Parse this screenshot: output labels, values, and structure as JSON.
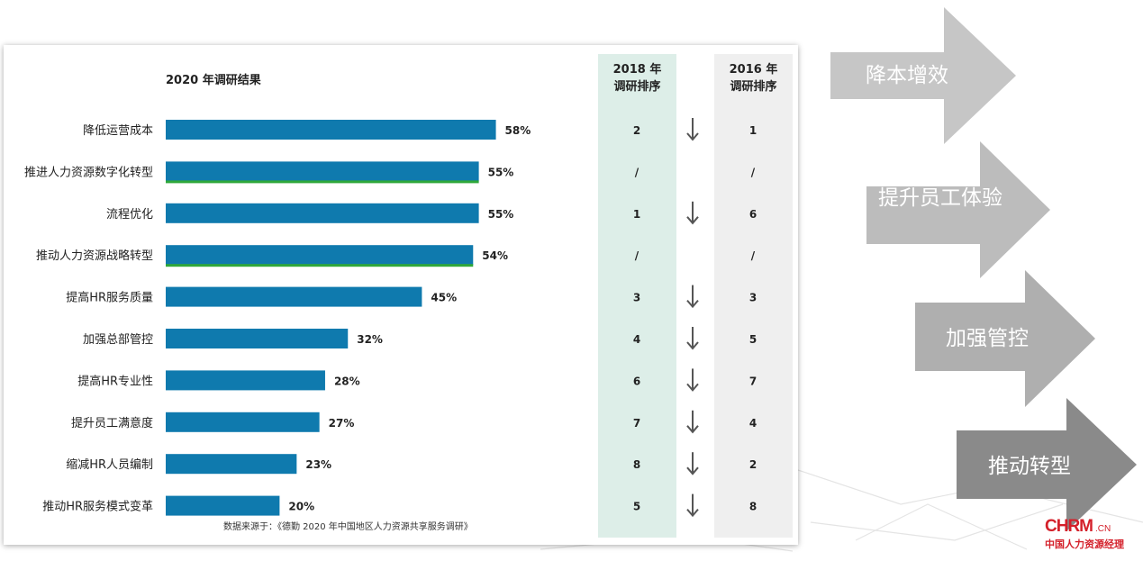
{
  "chart_data": {
    "type": "bar",
    "title": "2020 年调研结果",
    "categories": [
      "降低运营成本",
      "推进人力资源数字化转型",
      "流程优化",
      "推动人力资源战略转型",
      "提高HR服务质量",
      "加强总部管控",
      "提高HR专业性",
      "提升员工满意度",
      "缩减HR人员编制",
      "推动HR服务模式变革"
    ],
    "values": [
      58,
      55,
      55,
      54,
      45,
      32,
      28,
      27,
      23,
      20
    ],
    "value_labels": [
      "58%",
      "55%",
      "55%",
      "54%",
      "45%",
      "32%",
      "28%",
      "27%",
      "23%",
      "20%"
    ],
    "highlight": [
      false,
      true,
      false,
      true,
      false,
      false,
      false,
      false,
      false,
      false
    ],
    "bar_color": "#0f7aae",
    "highlight_color": "#2fa83a",
    "xlim": [
      0,
      100
    ],
    "source": "数据来源于：《德勤 2020 年中国地区人力资源共享服务调研》"
  },
  "rank_2018": {
    "header_line1": "2018 年",
    "header_line2": "调研排序",
    "values": [
      "2",
      "/",
      "1",
      "/",
      "3",
      "4",
      "6",
      "7",
      "8",
      "5"
    ]
  },
  "rank_2016": {
    "header_line1": "2016 年",
    "header_line2": "调研排序",
    "values": [
      "1",
      "/",
      "6",
      "/",
      "3",
      "5",
      "7",
      "4",
      "2",
      "8"
    ]
  },
  "trend_down": [
    true,
    false,
    true,
    false,
    true,
    true,
    true,
    true,
    true,
    true
  ],
  "arrows": [
    {
      "label": "降本增效",
      "color": "#c8c8c8"
    },
    {
      "label": "提升员工体验",
      "color": "#bdbdbd"
    },
    {
      "label": "加强管控",
      "color": "#b0b0b0"
    },
    {
      "label": "推动转型",
      "color": "#8c8c8c"
    }
  ],
  "logo": {
    "main": "CHRM",
    "suffix": ".CN",
    "sub": "中国人力资源经理"
  }
}
